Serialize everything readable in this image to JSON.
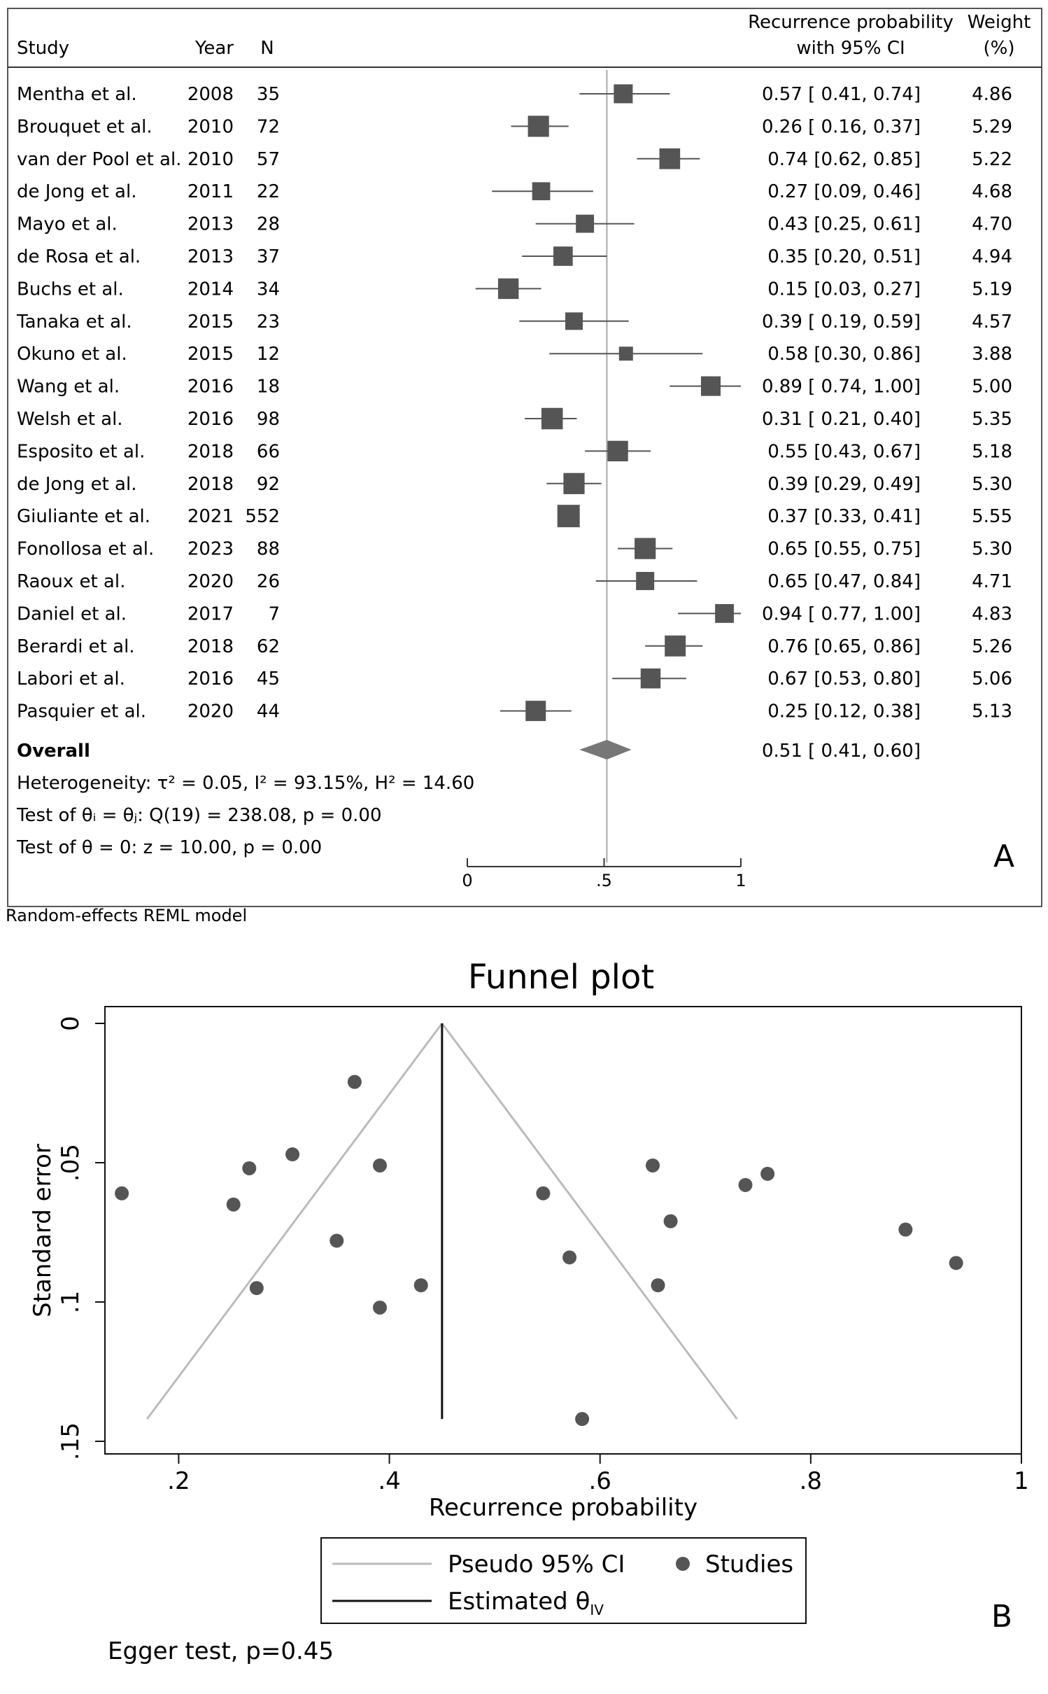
{
  "forest": {
    "headers": {
      "study": "Study",
      "year": "Year",
      "n": "N",
      "ci_line1": "Recurrence probability",
      "ci_line2": "with 95% CI",
      "weight_line1": "Weight",
      "weight_line2": "(%)"
    },
    "overall_label": "Overall",
    "overall_text": "0.51 [ 0.41, 0.60]",
    "heterogeneity_text": "Heterogeneity: τ² = 0.05, I² = 93.15%, H² = 14.60",
    "test_equal_text": "Test of θᵢ = θⱼ: Q(19) = 238.08, p = 0.00",
    "test_zero_text": "Test of θ = 0: z = 10.00, p = 0.00",
    "panel_letter": "A",
    "model_note": "Random-effects REML model",
    "axis_ticks": [
      {
        "value": 0,
        "label": "0"
      },
      {
        "value": 0.5,
        "label": ".5"
      },
      {
        "value": 1,
        "label": "1"
      }
    ]
  },
  "funnel": {
    "title": "Funnel plot",
    "xlabel": "Recurrence probability",
    "ylabel": "Standard error",
    "x_ticks": [
      {
        "value": 0.2,
        "label": ".2"
      },
      {
        "value": 0.4,
        "label": ".4"
      },
      {
        "value": 0.6,
        "label": ".6"
      },
      {
        "value": 0.8,
        "label": ".8"
      },
      {
        "value": 1.0,
        "label": "1"
      }
    ],
    "y_ticks": [
      {
        "value": 0,
        "label": "0"
      },
      {
        "value": 0.05,
        "label": ".05"
      },
      {
        "value": 0.1,
        "label": ".1"
      },
      {
        "value": 0.15,
        "label": ".15"
      }
    ],
    "legend_ci": "Pseudo 95% CI",
    "legend_studies": "Studies",
    "legend_est": "Estimated θ",
    "legend_est_sub": "IV",
    "panel_letter": "B",
    "egger_text": "Egger test, p=0.45"
  },
  "colors": {
    "marker": "#555555",
    "ci_line": "#555555",
    "null_line": "#aaaaaa",
    "diamond": "#777777",
    "funnel_ci": "#bbbbbb",
    "estimate_line": "#111111",
    "point": "#555555"
  },
  "chart_data": [
    {
      "type": "forest",
      "title": "",
      "xlim": [
        0,
        1
      ],
      "reference_line": 0.51,
      "studies": [
        {
          "study": "Mentha et al.",
          "year": "2008",
          "n": "35",
          "est": 0.57,
          "lo": 0.41,
          "hi": 0.74,
          "weight": 4.86,
          "ci_text": "0.57 [ 0.41, 0.74]",
          "weight_text": "4.86"
        },
        {
          "study": "Brouquet et al.",
          "year": "2010",
          "n": "72",
          "est": 0.26,
          "lo": 0.16,
          "hi": 0.37,
          "weight": 5.29,
          "ci_text": "0.26 [ 0.16, 0.37]",
          "weight_text": "5.29"
        },
        {
          "study": "van der Pool et al.",
          "year": "2010",
          "n": "57",
          "est": 0.74,
          "lo": 0.62,
          "hi": 0.85,
          "weight": 5.22,
          "ci_text": "0.74 [0.62, 0.85]",
          "weight_text": "5.22"
        },
        {
          "study": "de Jong et al.",
          "year": "2011",
          "n": "22",
          "est": 0.27,
          "lo": 0.09,
          "hi": 0.46,
          "weight": 4.68,
          "ci_text": "0.27 [0.09, 0.46]",
          "weight_text": "4.68"
        },
        {
          "study": "Mayo et al.",
          "year": "2013",
          "n": "28",
          "est": 0.43,
          "lo": 0.25,
          "hi": 0.61,
          "weight": 4.7,
          "ci_text": "0.43 [0.25, 0.61]",
          "weight_text": "4.70"
        },
        {
          "study": "de Rosa et al.",
          "year": "2013",
          "n": "37",
          "est": 0.35,
          "lo": 0.2,
          "hi": 0.51,
          "weight": 4.94,
          "ci_text": "0.35 [0.20, 0.51]",
          "weight_text": "4.94"
        },
        {
          "study": "Buchs et al.",
          "year": "2014",
          "n": "34",
          "est": 0.15,
          "lo": 0.03,
          "hi": 0.27,
          "weight": 5.19,
          "ci_text": "0.15 [0.03, 0.27]",
          "weight_text": "5.19"
        },
        {
          "study": "Tanaka et al.",
          "year": "2015",
          "n": "23",
          "est": 0.39,
          "lo": 0.19,
          "hi": 0.59,
          "weight": 4.57,
          "ci_text": "0.39 [ 0.19, 0.59]",
          "weight_text": "4.57"
        },
        {
          "study": "Okuno et al.",
          "year": "2015",
          "n": "12",
          "est": 0.58,
          "lo": 0.3,
          "hi": 0.86,
          "weight": 3.88,
          "ci_text": "0.58 [0.30, 0.86]",
          "weight_text": "3.88"
        },
        {
          "study": "Wang et al.",
          "year": "2016",
          "n": "18",
          "est": 0.89,
          "lo": 0.74,
          "hi": 1.0,
          "weight": 5.0,
          "ci_text": "0.89 [ 0.74, 1.00]",
          "weight_text": "5.00"
        },
        {
          "study": "Welsh et al.",
          "year": "2016",
          "n": "98",
          "est": 0.31,
          "lo": 0.21,
          "hi": 0.4,
          "weight": 5.35,
          "ci_text": "0.31 [ 0.21, 0.40]",
          "weight_text": "5.35"
        },
        {
          "study": "Esposito et al.",
          "year": "2018",
          "n": "66",
          "est": 0.55,
          "lo": 0.43,
          "hi": 0.67,
          "weight": 5.18,
          "ci_text": "0.55 [0.43, 0.67]",
          "weight_text": "5.18"
        },
        {
          "study": "de Jong et al.",
          "year": "2018",
          "n": "92",
          "est": 0.39,
          "lo": 0.29,
          "hi": 0.49,
          "weight": 5.3,
          "ci_text": "0.39 [0.29, 0.49]",
          "weight_text": "5.30"
        },
        {
          "study": "Giuliante et al.",
          "year": "2021",
          "n": "552",
          "est": 0.37,
          "lo": 0.33,
          "hi": 0.41,
          "weight": 5.55,
          "ci_text": "0.37 [0.33, 0.41]",
          "weight_text": "5.55"
        },
        {
          "study": "Fonollosa et al.",
          "year": "2023",
          "n": "88",
          "est": 0.65,
          "lo": 0.55,
          "hi": 0.75,
          "weight": 5.3,
          "ci_text": "0.65 [0.55, 0.75]",
          "weight_text": "5.30"
        },
        {
          "study": "Raoux et al.",
          "year": "2020",
          "n": "26",
          "est": 0.65,
          "lo": 0.47,
          "hi": 0.84,
          "weight": 4.71,
          "ci_text": "0.65 [0.47, 0.84]",
          "weight_text": "4.71"
        },
        {
          "study": "Daniel et al.",
          "year": "2017",
          "n": "7",
          "est": 0.94,
          "lo": 0.77,
          "hi": 1.0,
          "weight": 4.83,
          "ci_text": "0.94 [ 0.77, 1.00]",
          "weight_text": "4.83"
        },
        {
          "study": "Berardi et al.",
          "year": "2018",
          "n": "62",
          "est": 0.76,
          "lo": 0.65,
          "hi": 0.86,
          "weight": 5.26,
          "ci_text": "0.76 [0.65, 0.86]",
          "weight_text": "5.26"
        },
        {
          "study": "Labori et al.",
          "year": "2016",
          "n": "45",
          "est": 0.67,
          "lo": 0.53,
          "hi": 0.8,
          "weight": 5.06,
          "ci_text": "0.67 [0.53, 0.80]",
          "weight_text": "5.06"
        },
        {
          "study": "Pasquier et al.",
          "year": "2020",
          "n": "44",
          "est": 0.25,
          "lo": 0.12,
          "hi": 0.38,
          "weight": 5.13,
          "ci_text": "0.25 [0.12, 0.38]",
          "weight_text": "5.13"
        }
      ],
      "overall": {
        "est": 0.51,
        "lo": 0.41,
        "hi": 0.6
      }
    },
    {
      "type": "scatter",
      "title": "Funnel plot",
      "xlabel": "Recurrence probability",
      "ylabel": "Standard error",
      "xlim": [
        0.13,
        1.0
      ],
      "ylim": [
        0,
        0.154
      ],
      "y_inverted": true,
      "estimate": 0.45,
      "pseudo_ci": {
        "apex": [
          0.45,
          0
        ],
        "bottom_left": [
          0.17,
          0.142
        ],
        "bottom_right": [
          0.73,
          0.142
        ]
      },
      "points": [
        {
          "x": 0.146,
          "y": 0.061
        },
        {
          "x": 0.252,
          "y": 0.065
        },
        {
          "x": 0.267,
          "y": 0.052
        },
        {
          "x": 0.274,
          "y": 0.095
        },
        {
          "x": 0.308,
          "y": 0.047
        },
        {
          "x": 0.35,
          "y": 0.078
        },
        {
          "x": 0.367,
          "y": 0.021
        },
        {
          "x": 0.391,
          "y": 0.051
        },
        {
          "x": 0.391,
          "y": 0.102
        },
        {
          "x": 0.43,
          "y": 0.094
        },
        {
          "x": 0.546,
          "y": 0.061
        },
        {
          "x": 0.571,
          "y": 0.084
        },
        {
          "x": 0.583,
          "y": 0.142
        },
        {
          "x": 0.65,
          "y": 0.051
        },
        {
          "x": 0.655,
          "y": 0.094
        },
        {
          "x": 0.667,
          "y": 0.071
        },
        {
          "x": 0.738,
          "y": 0.058
        },
        {
          "x": 0.759,
          "y": 0.054
        },
        {
          "x": 0.89,
          "y": 0.074
        },
        {
          "x": 0.938,
          "y": 0.086
        }
      ],
      "legend_position": "bottom"
    }
  ]
}
